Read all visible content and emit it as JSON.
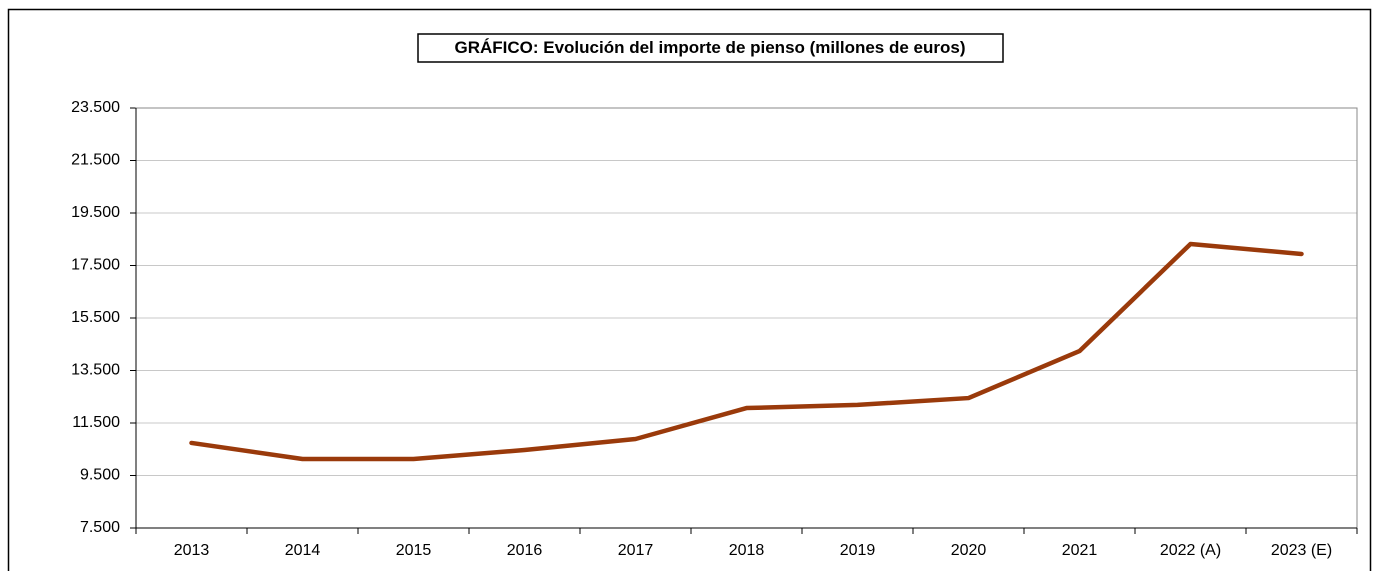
{
  "chart_data": {
    "type": "line",
    "title": "GRÁFICO: Evolución del importe de pienso (millones de euros)",
    "categories": [
      "2013",
      "2014",
      "2015",
      "2016",
      "2017",
      "2018",
      "2019",
      "2020",
      "2021",
      "2022 (A)",
      "2023 (E)"
    ],
    "series": [
      {
        "name": "Importe de pienso",
        "color": "#9a3a0b",
        "values": [
          10740,
          10130,
          10130,
          10470,
          10890,
          12070,
          12190,
          12450,
          14240,
          18320,
          17940
        ]
      }
    ],
    "ylim": [
      7500,
      23500
    ],
    "yticks": [
      {
        "value": 7500,
        "label": "7.500"
      },
      {
        "value": 9500,
        "label": "9.500"
      },
      {
        "value": 11500,
        "label": "11.500"
      },
      {
        "value": 13500,
        "label": "13.500"
      },
      {
        "value": 15500,
        "label": "15.500"
      },
      {
        "value": 17500,
        "label": "17.500"
      },
      {
        "value": 19500,
        "label": "19.500"
      },
      {
        "value": 21500,
        "label": "21.500"
      },
      {
        "value": 23500,
        "label": "23.500"
      }
    ],
    "grid": true
  }
}
